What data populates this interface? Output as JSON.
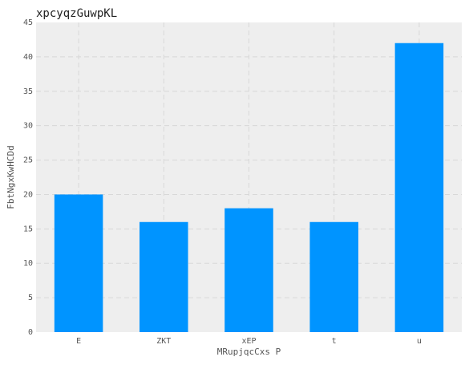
{
  "chart_data": {
    "type": "bar",
    "title": "xpcyqzGuwpKL",
    "xlabel": "MRupjqcCxs P",
    "ylabel": "FbtNgxKwHCDd",
    "categories": [
      "E",
      "ZKT",
      "xEP",
      "t",
      "u"
    ],
    "values": [
      20,
      16,
      18,
      16,
      42
    ],
    "ylim": [
      0,
      45
    ],
    "yticks": [
      0,
      5,
      10,
      15,
      20,
      25,
      30,
      35,
      40,
      45
    ],
    "grid": true,
    "colors": {
      "bar": "#0094ff",
      "plot_background": "#eeeeee",
      "grid": "#d8d8d8"
    }
  }
}
